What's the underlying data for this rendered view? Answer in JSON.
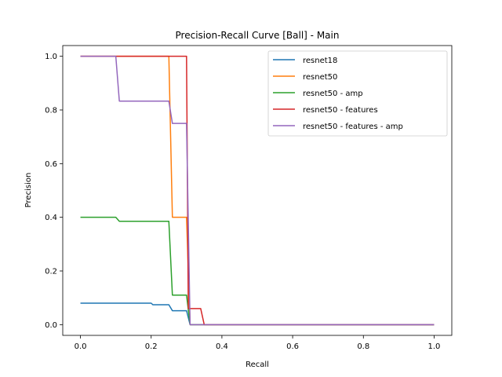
{
  "chart_data": {
    "type": "line",
    "title": "Precision-Recall Curve [Ball] - Main",
    "xlabel": "Recall",
    "ylabel": "Precision",
    "xlim": [
      -0.05,
      1.05
    ],
    "ylim": [
      -0.04,
      1.04
    ],
    "xticks": [
      "0.0",
      "0.2",
      "0.4",
      "0.6",
      "0.8",
      "1.0"
    ],
    "yticks": [
      "0.0",
      "0.2",
      "0.4",
      "0.6",
      "0.8",
      "1.0"
    ],
    "legend_position": "top-right",
    "grid": false,
    "series": [
      {
        "name": "resnet18",
        "color": "#1f77b4",
        "points": [
          [
            0.0,
            0.08
          ],
          [
            0.2,
            0.08
          ],
          [
            0.205,
            0.074
          ],
          [
            0.25,
            0.074
          ],
          [
            0.26,
            0.052
          ],
          [
            0.3,
            0.052
          ],
          [
            0.31,
            0.0
          ],
          [
            1.0,
            0.0
          ]
        ]
      },
      {
        "name": "resnet50",
        "color": "#ff7f0e",
        "points": [
          [
            0.0,
            1.0
          ],
          [
            0.25,
            1.0
          ],
          [
            0.26,
            0.4
          ],
          [
            0.3,
            0.4
          ],
          [
            0.31,
            0.0
          ],
          [
            1.0,
            0.0
          ]
        ]
      },
      {
        "name": "resnet50 - amp",
        "color": "#2ca02c",
        "points": [
          [
            0.0,
            0.4
          ],
          [
            0.1,
            0.4
          ],
          [
            0.11,
            0.385
          ],
          [
            0.25,
            0.385
          ],
          [
            0.26,
            0.11
          ],
          [
            0.3,
            0.11
          ],
          [
            0.31,
            0.0
          ],
          [
            1.0,
            0.0
          ]
        ]
      },
      {
        "name": "resnet50 - features",
        "color": "#d62728",
        "points": [
          [
            0.0,
            1.0
          ],
          [
            0.3,
            1.0
          ],
          [
            0.305,
            0.06
          ],
          [
            0.34,
            0.06
          ],
          [
            0.35,
            0.0
          ],
          [
            1.0,
            0.0
          ]
        ]
      },
      {
        "name": "resnet50 - features - amp",
        "color": "#9467bd",
        "points": [
          [
            0.0,
            1.0
          ],
          [
            0.1,
            1.0
          ],
          [
            0.11,
            0.833
          ],
          [
            0.25,
            0.833
          ],
          [
            0.26,
            0.75
          ],
          [
            0.3,
            0.75
          ],
          [
            0.31,
            0.0
          ],
          [
            1.0,
            0.0
          ]
        ]
      }
    ]
  }
}
